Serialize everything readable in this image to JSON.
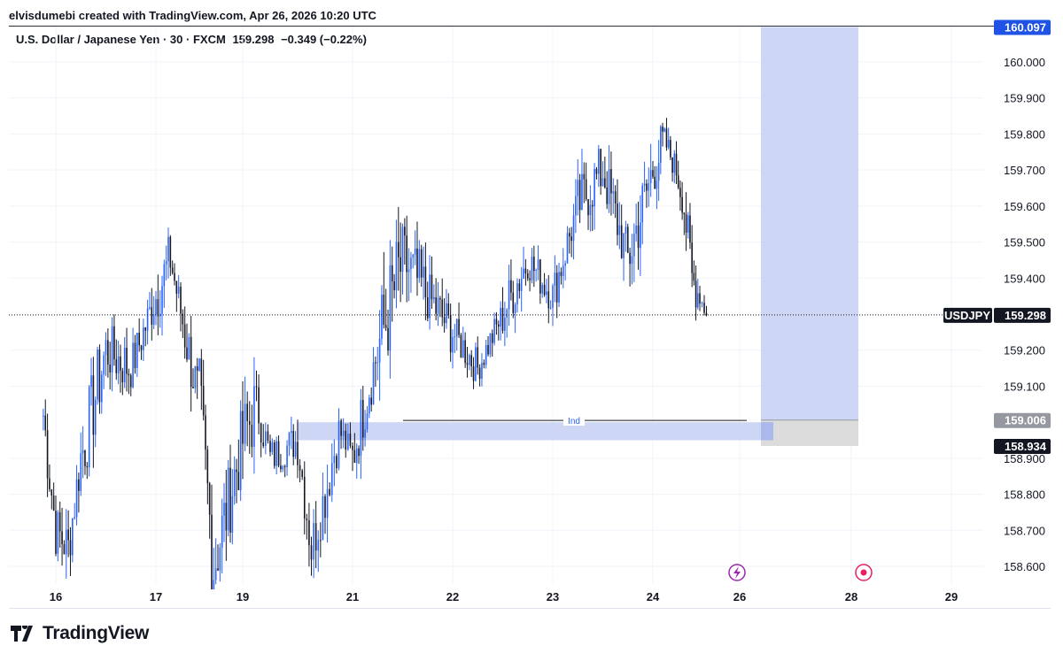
{
  "credit": "elvisdumebi created with TradingView.com, Apr 26, 2026 10:20 UTC",
  "symbol_line": {
    "name": "U.S. Dollar / Japanese Yen",
    "interval": "30",
    "exchange": "FXCM",
    "price": "159.298",
    "change": "−0.349 (−0.22%)"
  },
  "brand": "TradingView",
  "colors": {
    "bull": "#2962ff",
    "bear": "#131722",
    "zone": "#c5cff5",
    "zone_grey": "#d8d8d8",
    "last_tag": "#131722",
    "target_tag": "#1e53e5",
    "grid": "#f0f3fa"
  },
  "chart_data": {
    "type": "candlestick",
    "symbol": "USDJPY",
    "ylim": [
      158.55,
      160.1
    ],
    "y_ticks": [
      "158.600",
      "158.700",
      "158.800",
      "158.900",
      "159.100",
      "159.200",
      "159.400",
      "159.500",
      "159.600",
      "159.700",
      "159.800",
      "159.900",
      "160.000"
    ],
    "x_ticks": [
      "16",
      "17",
      "19",
      "21",
      "22",
      "23",
      "24",
      "26",
      "28",
      "29"
    ],
    "last_price": {
      "label": "USDJPY",
      "value": "159.298"
    },
    "price_tags": [
      {
        "value": "160.097",
        "style": "target"
      },
      {
        "value": "159.006",
        "style": "grey"
      },
      {
        "value": "158.934",
        "style": "dark"
      }
    ],
    "horizontal_line": {
      "label": "Ind",
      "price": 159.01
    },
    "demand_zone": {
      "from": 158.95,
      "to": 159.0
    },
    "projection_box": {
      "top": 160.097,
      "entry": 159.006,
      "stop": 158.934
    },
    "series_approx": [
      {
        "x": "15 21:00",
        "o": 159.05,
        "h": 159.12,
        "l": 158.95,
        "c": 159.02
      },
      {
        "x": "16 00:00",
        "o": 158.9,
        "h": 158.98,
        "l": 158.62,
        "c": 158.7
      },
      {
        "x": "16 03:00",
        "o": 158.7,
        "h": 158.82,
        "l": 158.55,
        "c": 158.65
      },
      {
        "x": "16 06:00",
        "o": 158.65,
        "h": 158.95,
        "l": 158.63,
        "c": 158.9
      },
      {
        "x": "16 12:00",
        "o": 158.9,
        "h": 159.25,
        "l": 158.85,
        "c": 159.2
      },
      {
        "x": "16 18:00",
        "o": 159.2,
        "h": 159.3,
        "l": 159.05,
        "c": 159.15
      },
      {
        "x": "17 00:00",
        "o": 159.15,
        "h": 159.4,
        "l": 159.05,
        "c": 159.35
      },
      {
        "x": "17 04:00",
        "o": 159.35,
        "h": 159.53,
        "l": 159.3,
        "c": 159.45
      },
      {
        "x": "17 08:00",
        "o": 159.45,
        "h": 159.5,
        "l": 159.2,
        "c": 159.25
      },
      {
        "x": "17 12:00",
        "o": 159.25,
        "h": 159.3,
        "l": 159.0,
        "c": 159.05
      },
      {
        "x": "17 16:00",
        "o": 159.05,
        "h": 159.15,
        "l": 158.55,
        "c": 158.6
      },
      {
        "x": "19 00:00",
        "o": 158.6,
        "h": 159.0,
        "l": 158.55,
        "c": 158.95
      },
      {
        "x": "19 06:00",
        "o": 158.95,
        "h": 159.18,
        "l": 158.9,
        "c": 159.05
      },
      {
        "x": "19 12:00",
        "o": 159.05,
        "h": 159.1,
        "l": 158.85,
        "c": 158.9
      },
      {
        "x": "20 00:00",
        "o": 158.9,
        "h": 159.0,
        "l": 158.8,
        "c": 158.95
      },
      {
        "x": "20 06:00",
        "o": 158.95,
        "h": 159.0,
        "l": 158.57,
        "c": 158.65
      },
      {
        "x": "20 12:00",
        "o": 158.65,
        "h": 158.85,
        "l": 158.58,
        "c": 158.8
      },
      {
        "x": "20 18:00",
        "o": 158.8,
        "h": 159.02,
        "l": 158.75,
        "c": 158.98
      },
      {
        "x": "21 00:00",
        "o": 158.98,
        "h": 159.02,
        "l": 158.8,
        "c": 158.9
      },
      {
        "x": "21 06:00",
        "o": 158.9,
        "h": 159.25,
        "l": 158.88,
        "c": 159.2
      },
      {
        "x": "21 12:00",
        "o": 159.2,
        "h": 159.65,
        "l": 159.1,
        "c": 159.45
      },
      {
        "x": "21 18:00",
        "o": 159.45,
        "h": 159.55,
        "l": 159.2,
        "c": 159.35
      },
      {
        "x": "22 00:00",
        "o": 159.35,
        "h": 159.4,
        "l": 159.15,
        "c": 159.25
      },
      {
        "x": "22 06:00",
        "o": 159.25,
        "h": 159.3,
        "l": 159.1,
        "c": 159.15
      },
      {
        "x": "22 12:00",
        "o": 159.15,
        "h": 159.35,
        "l": 159.1,
        "c": 159.3
      },
      {
        "x": "22 18:00",
        "o": 159.3,
        "h": 159.5,
        "l": 159.25,
        "c": 159.45
      },
      {
        "x": "23 00:00",
        "o": 159.45,
        "h": 159.55,
        "l": 159.3,
        "c": 159.35
      },
      {
        "x": "23 06:00",
        "o": 159.35,
        "h": 159.65,
        "l": 159.3,
        "c": 159.6
      },
      {
        "x": "23 12:00",
        "o": 159.6,
        "h": 159.75,
        "l": 159.5,
        "c": 159.7
      },
      {
        "x": "23 18:00",
        "o": 159.7,
        "h": 159.72,
        "l": 159.32,
        "c": 159.45
      },
      {
        "x": "24 00:00",
        "o": 159.45,
        "h": 159.84,
        "l": 159.4,
        "c": 159.7
      },
      {
        "x": "24 06:00",
        "o": 159.7,
        "h": 159.83,
        "l": 159.65,
        "c": 159.78
      },
      {
        "x": "24 12:00",
        "o": 159.78,
        "h": 159.82,
        "l": 159.6,
        "c": 159.7
      },
      {
        "x": "24 16:00",
        "o": 159.7,
        "h": 159.75,
        "l": 159.55,
        "c": 159.6
      },
      {
        "x": "24 20:00",
        "o": 159.6,
        "h": 159.65,
        "l": 159.32,
        "c": 159.4
      },
      {
        "x": "25 00:00",
        "o": 159.4,
        "h": 159.46,
        "l": 159.3,
        "c": 159.35
      },
      {
        "x": "25 04:00",
        "o": 159.35,
        "h": 159.43,
        "l": 159.29,
        "c": 159.298
      }
    ]
  },
  "markers": {
    "lightning_icon": "lightning-icon",
    "record_icon": "record-icon"
  }
}
